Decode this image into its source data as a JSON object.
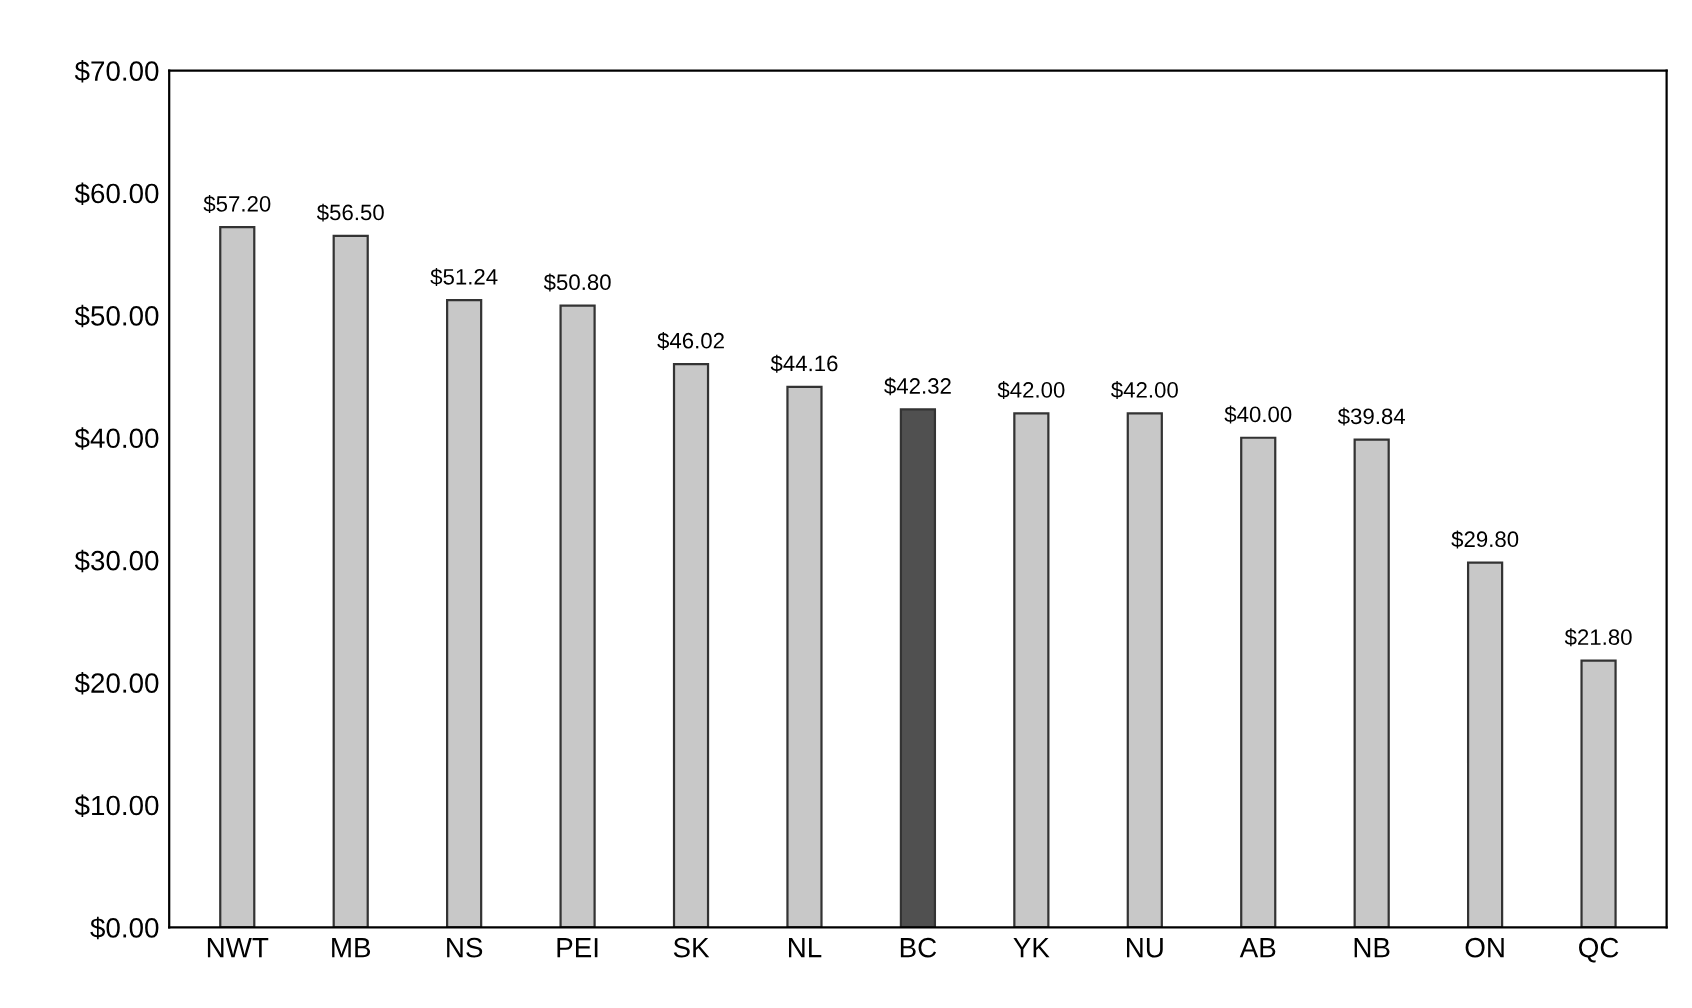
{
  "chart_data": {
    "type": "bar",
    "categories": [
      "NWT",
      "MB",
      "NS",
      "PEI",
      "SK",
      "NL",
      "BC",
      "YK",
      "NU",
      "AB",
      "NB",
      "ON",
      "QC"
    ],
    "values": [
      57.2,
      56.5,
      51.24,
      50.8,
      46.02,
      44.16,
      42.32,
      42.0,
      42.0,
      40.0,
      39.84,
      29.8,
      21.8
    ],
    "colors": [
      "#c8c8c8",
      "#c8c8c8",
      "#c8c8c8",
      "#c8c8c8",
      "#c8c8c8",
      "#c8c8c8",
      "#505050",
      "#c8c8c8",
      "#c8c8c8",
      "#c8c8c8",
      "#c8c8c8",
      "#c8c8c8",
      "#c8c8c8"
    ],
    "value_labels": [
      "$57.20",
      "$56.50",
      "$51.24",
      "$50.80",
      "$46.02",
      "$44.16",
      "$42.32",
      "$42.00",
      "$42.00",
      "$40.00",
      "$39.84",
      "$29.80",
      "$21.80"
    ],
    "ylim": [
      0,
      70
    ],
    "yticks": [
      {
        "value": 0,
        "label": "$0.00"
      },
      {
        "value": 10,
        "label": "$10.00"
      },
      {
        "value": 20,
        "label": "$20.00"
      },
      {
        "value": 30,
        "label": "$30.00"
      },
      {
        "value": 40,
        "label": "$40.00"
      },
      {
        "value": 50,
        "label": "$50.00"
      },
      {
        "value": 60,
        "label": "$60.00"
      },
      {
        "value": 70,
        "label": "$70.00"
      }
    ],
    "grid": false
  }
}
